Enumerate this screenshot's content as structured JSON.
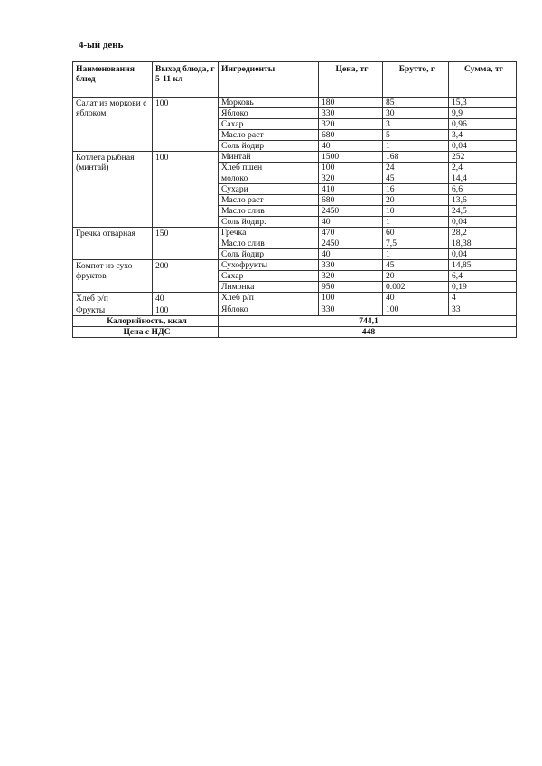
{
  "title": "4-ый день",
  "headers": [
    "Наименования блюд",
    "Выход блюда, г 5-11 кл",
    "Ингредиенты",
    "Цена, тг",
    "Брутто, г",
    "Сумма, тг"
  ],
  "dishes": [
    {
      "name": "Салат из моркови с яблоком",
      "yield": "100",
      "items": [
        [
          "Морковь",
          "180",
          "85",
          "15,3"
        ],
        [
          "Яблоко",
          "330",
          "30",
          "9,9"
        ],
        [
          "Сахар",
          "320",
          "3",
          "0,96"
        ],
        [
          "Масло раст",
          "680",
          "5",
          "3,4"
        ],
        [
          "Соль йодир",
          "40",
          "1",
          "0,04"
        ]
      ]
    },
    {
      "name": "Котлета рыбная (минтай)",
      "yield": "100",
      "items": [
        [
          "Минтай",
          "1500",
          "168",
          "252"
        ],
        [
          "Хлеб пшен",
          "100",
          "24",
          "2,4"
        ],
        [
          "молоко",
          "320",
          "45",
          "14,4"
        ],
        [
          "Сухари",
          "410",
          "16",
          "6,6"
        ],
        [
          "Масло раст",
          "680",
          "20",
          "13,6"
        ],
        [
          "Масло слив",
          "2450",
          "10",
          "24,5"
        ],
        [
          "Соль йодир.",
          "40",
          "1",
          "0,04"
        ]
      ]
    },
    {
      "name": "Гречка отварная",
      "yield": "150",
      "items": [
        [
          "Гречка",
          "470",
          "60",
          "28,2"
        ],
        [
          "Масло слив",
          "2450",
          "7,5",
          "18,38"
        ],
        [
          "Соль йодир",
          "40",
          "1",
          "0,04"
        ]
      ]
    },
    {
      "name": "Компот из сухо фруктов",
      "yield": "200",
      "items": [
        [
          "Сухофрукты",
          "330",
          "45",
          "14,85"
        ],
        [
          "Сахар",
          "320",
          "20",
          "6,4"
        ],
        [
          "Лимонка",
          "950",
          "0.002",
          "0,19"
        ]
      ]
    },
    {
      "name": "Хлеб р/п",
      "yield": "40",
      "items": [
        [
          "Хлеб р/п",
          "100",
          "40",
          "4"
        ]
      ]
    },
    {
      "name": "Фрукты",
      "yield": "100",
      "items": [
        [
          "Яблоко",
          "330",
          "100",
          "33"
        ]
      ]
    }
  ],
  "totals": [
    {
      "label": "Калорийность, ккал",
      "value": "744,1"
    },
    {
      "label": "Цена с НДС",
      "value": "448"
    }
  ]
}
